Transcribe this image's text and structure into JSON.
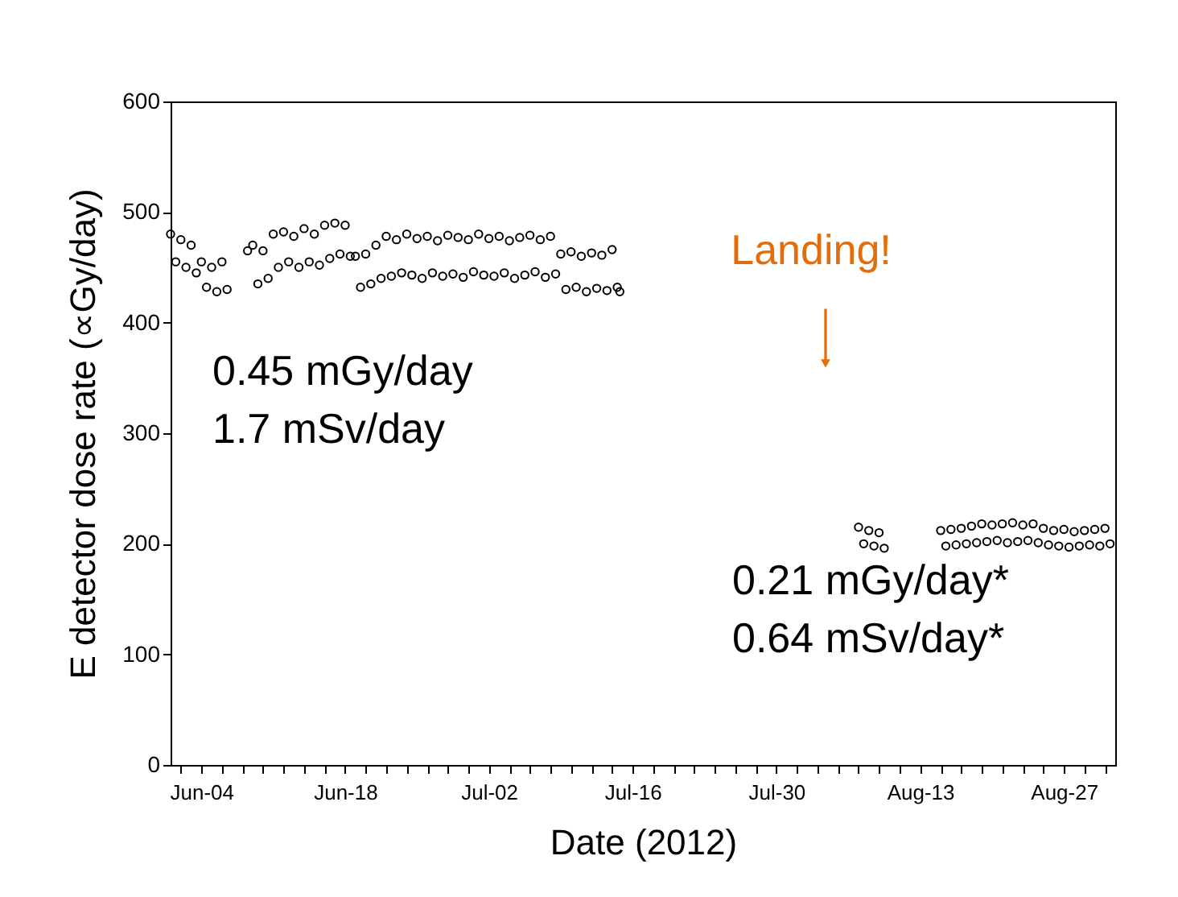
{
  "chart_data": {
    "type": "scatter",
    "xlabel": "Date (2012)",
    "ylabel": "E detector dose rate (∝Gy/day)",
    "x": [
      "2012-06-01T00:00",
      "2012-06-01T12:00",
      "2012-06-02T00:00",
      "2012-06-02T12:00",
      "2012-06-03T00:00",
      "2012-06-03T12:00",
      "2012-06-04T00:00",
      "2012-06-04T12:00",
      "2012-06-05T00:00",
      "2012-06-05T12:00",
      "2012-06-06T00:00",
      "2012-06-06T12:00",
      "2012-06-08T12:00",
      "2012-06-09T00:00",
      "2012-06-09T12:00",
      "2012-06-10T00:00",
      "2012-06-10T12:00",
      "2012-06-11T00:00",
      "2012-06-11T12:00",
      "2012-06-12T00:00",
      "2012-06-12T12:00",
      "2012-06-13T00:00",
      "2012-06-13T12:00",
      "2012-06-14T00:00",
      "2012-06-14T12:00",
      "2012-06-15T00:00",
      "2012-06-15T12:00",
      "2012-06-16T00:00",
      "2012-06-16T12:00",
      "2012-06-17T00:00",
      "2012-06-17T12:00",
      "2012-06-18T00:00",
      "2012-06-18T12:00",
      "2012-06-19T00:00",
      "2012-06-19T12:00",
      "2012-06-20T00:00",
      "2012-06-20T12:00",
      "2012-06-21T00:00",
      "2012-06-21T12:00",
      "2012-06-22T00:00",
      "2012-06-22T12:00",
      "2012-06-23T00:00",
      "2012-06-23T12:00",
      "2012-06-24T00:00",
      "2012-06-24T12:00",
      "2012-06-25T00:00",
      "2012-06-25T12:00",
      "2012-06-26T00:00",
      "2012-06-26T12:00",
      "2012-06-27T00:00",
      "2012-06-27T12:00",
      "2012-06-28T00:00",
      "2012-06-28T12:00",
      "2012-06-29T00:00",
      "2012-06-29T12:00",
      "2012-06-30T00:00",
      "2012-06-30T12:00",
      "2012-07-01T00:00",
      "2012-07-01T12:00",
      "2012-07-02T00:00",
      "2012-07-02T12:00",
      "2012-07-03T00:00",
      "2012-07-03T12:00",
      "2012-07-04T00:00",
      "2012-07-04T12:00",
      "2012-07-05T00:00",
      "2012-07-05T12:00",
      "2012-07-06T00:00",
      "2012-07-06T12:00",
      "2012-07-07T00:00",
      "2012-07-07T12:00",
      "2012-07-08T00:00",
      "2012-07-08T12:00",
      "2012-07-09T00:00",
      "2012-07-09T12:00",
      "2012-07-10T00:00",
      "2012-07-10T12:00",
      "2012-07-11T00:00",
      "2012-07-11T12:00",
      "2012-07-12T00:00",
      "2012-07-12T12:00",
      "2012-07-13T00:00",
      "2012-07-13T12:00",
      "2012-07-14T00:00",
      "2012-07-14T12:00",
      "2012-07-14T18:00",
      "2012-08-07T00:00",
      "2012-08-07T12:00",
      "2012-08-08T00:00",
      "2012-08-08T12:00",
      "2012-08-09T00:00",
      "2012-08-09T12:00",
      "2012-08-15T00:00",
      "2012-08-15T12:00",
      "2012-08-16T00:00",
      "2012-08-16T12:00",
      "2012-08-17T00:00",
      "2012-08-17T12:00",
      "2012-08-18T00:00",
      "2012-08-18T12:00",
      "2012-08-19T00:00",
      "2012-08-19T12:00",
      "2012-08-20T00:00",
      "2012-08-20T12:00",
      "2012-08-21T00:00",
      "2012-08-21T12:00",
      "2012-08-22T00:00",
      "2012-08-22T12:00",
      "2012-08-23T00:00",
      "2012-08-23T12:00",
      "2012-08-24T00:00",
      "2012-08-24T12:00",
      "2012-08-25T00:00",
      "2012-08-25T12:00",
      "2012-08-26T00:00",
      "2012-08-26T12:00",
      "2012-08-27T00:00",
      "2012-08-27T12:00",
      "2012-08-28T00:00",
      "2012-08-28T12:00",
      "2012-08-29T00:00",
      "2012-08-29T12:00",
      "2012-08-30T00:00",
      "2012-08-30T12:00",
      "2012-08-31T00:00",
      "2012-08-31T12:00"
    ],
    "series": [
      {
        "color": "#000000",
        "values": [
          480,
          455,
          475,
          450,
          470,
          445,
          455,
          432,
          450,
          428,
          455,
          430,
          465,
          470,
          435,
          465,
          440,
          480,
          450,
          482,
          455,
          478,
          450,
          485,
          455,
          480,
          452,
          488,
          458,
          490,
          462,
          488,
          460,
          460,
          432,
          462,
          435,
          470,
          440,
          478,
          442,
          475,
          445,
          480,
          443,
          476,
          440,
          478,
          445,
          474,
          442,
          479,
          444,
          477,
          441,
          475,
          446,
          480,
          443,
          476,
          442,
          478,
          445,
          474,
          440,
          477,
          443,
          479,
          446,
          475,
          441,
          478,
          444,
          462,
          430,
          464,
          432,
          460,
          428,
          463,
          431,
          461,
          429,
          466,
          432,
          428,
          215,
          200,
          212,
          198,
          210,
          196,
          212,
          198,
          213,
          199,
          214,
          200,
          216,
          201,
          218,
          202,
          217,
          203,
          218,
          201,
          219,
          202,
          217,
          203,
          218,
          201,
          214,
          199,
          212,
          198,
          213,
          197,
          211,
          198,
          212,
          199,
          213,
          198,
          214,
          200
        ]
      }
    ],
    "marker": "circle",
    "grid": false,
    "xlim": [
      "2012-06-01",
      "2012-09-01"
    ],
    "xticks": [
      {
        "value": "2012-06-02",
        "label": null
      },
      {
        "value": "2012-06-04",
        "label": "Jun-04"
      },
      {
        "value": "2012-06-06",
        "label": null
      },
      {
        "value": "2012-06-08",
        "label": null
      },
      {
        "value": "2012-06-10",
        "label": null
      },
      {
        "value": "2012-06-12",
        "label": null
      },
      {
        "value": "2012-06-14",
        "label": null
      },
      {
        "value": "2012-06-16",
        "label": null
      },
      {
        "value": "2012-06-18",
        "label": "Jun-18"
      },
      {
        "value": "2012-06-20",
        "label": null
      },
      {
        "value": "2012-06-22",
        "label": null
      },
      {
        "value": "2012-06-24",
        "label": null
      },
      {
        "value": "2012-06-26",
        "label": null
      },
      {
        "value": "2012-06-28",
        "label": null
      },
      {
        "value": "2012-06-30",
        "label": null
      },
      {
        "value": "2012-07-02",
        "label": "Jul-02"
      },
      {
        "value": "2012-07-04",
        "label": null
      },
      {
        "value": "2012-07-06",
        "label": null
      },
      {
        "value": "2012-07-08",
        "label": null
      },
      {
        "value": "2012-07-10",
        "label": null
      },
      {
        "value": "2012-07-12",
        "label": null
      },
      {
        "value": "2012-07-14",
        "label": null
      },
      {
        "value": "2012-07-16",
        "label": "Jul-16"
      },
      {
        "value": "2012-07-18",
        "label": null
      },
      {
        "value": "2012-07-20",
        "label": null
      },
      {
        "value": "2012-07-22",
        "label": null
      },
      {
        "value": "2012-07-24",
        "label": null
      },
      {
        "value": "2012-07-26",
        "label": null
      },
      {
        "value": "2012-07-28",
        "label": null
      },
      {
        "value": "2012-07-30",
        "label": "Jul-30"
      },
      {
        "value": "2012-08-01",
        "label": null
      },
      {
        "value": "2012-08-03",
        "label": null
      },
      {
        "value": "2012-08-05",
        "label": null
      },
      {
        "value": "2012-08-07",
        "label": null
      },
      {
        "value": "2012-08-09",
        "label": null
      },
      {
        "value": "2012-08-11",
        "label": null
      },
      {
        "value": "2012-08-13",
        "label": "Aug-13"
      },
      {
        "value": "2012-08-15",
        "label": null
      },
      {
        "value": "2012-08-17",
        "label": null
      },
      {
        "value": "2012-08-19",
        "label": null
      },
      {
        "value": "2012-08-21",
        "label": null
      },
      {
        "value": "2012-08-23",
        "label": null
      },
      {
        "value": "2012-08-25",
        "label": null
      },
      {
        "value": "2012-08-27",
        "label": "Aug-27"
      },
      {
        "value": "2012-08-29",
        "label": null
      },
      {
        "value": "2012-08-31",
        "label": null
      }
    ],
    "ylim": [
      0,
      600
    ],
    "yticks": [
      0,
      100,
      200,
      300,
      400,
      500,
      600
    ],
    "annotations": [
      "Landing!",
      "0.45 mGy/day",
      "1.7 mSv/day",
      "0.21 mGy/day*",
      "0.64 mSv/day*"
    ]
  }
}
